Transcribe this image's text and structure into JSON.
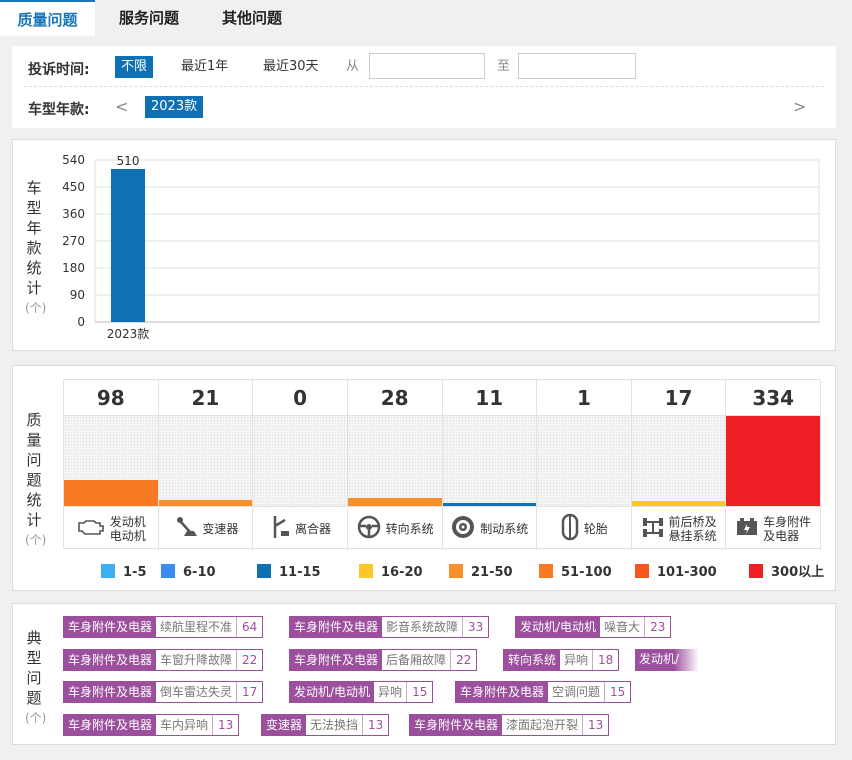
{
  "tabs": [
    "质量问题",
    "服务问题",
    "其他问题"
  ],
  "filter": {
    "time_label": "投诉时间:",
    "time_options": [
      "不限",
      "最近1年",
      "最近30天"
    ],
    "from_label": "从",
    "to_label": "至",
    "from_value": "",
    "to_value": "",
    "model_label": "车型年款:",
    "prev": "<",
    "next": ">",
    "model_selected": "2023款"
  },
  "year_chart": {
    "title_chars": [
      "车",
      "型",
      "年",
      "款",
      "统",
      "计"
    ],
    "unit": "(个)"
  },
  "chart_data": {
    "type": "bar",
    "categories": [
      "2023款"
    ],
    "values": [
      510
    ],
    "title": "车型年款统计",
    "ylabel": "(个)",
    "yticks": [
      0,
      90,
      180,
      270,
      360,
      450,
      540
    ],
    "ylim": [
      0,
      540
    ],
    "grid": true
  },
  "quality": {
    "title_chars": [
      "质",
      "量",
      "问",
      "题",
      "统",
      "计"
    ],
    "unit": "(个)",
    "max": 334,
    "columns": [
      {
        "count": "98",
        "value": 98,
        "label": [
          "发动机",
          "电动机"
        ],
        "icon": "engine-icon",
        "color": "#f97a25"
      },
      {
        "count": "21",
        "value": 21,
        "label": [
          "变速器"
        ],
        "icon": "gearshift-icon",
        "color": "#f78f2a"
      },
      {
        "count": "0",
        "value": 0,
        "label": [
          "离合器"
        ],
        "icon": "clutch-pedal-icon",
        "color": "#f78f2a"
      },
      {
        "count": "28",
        "value": 28,
        "label": [
          "转向系统"
        ],
        "icon": "steering-wheel-icon",
        "color": "#f78f2a"
      },
      {
        "count": "11",
        "value": 11,
        "label": [
          "制动系统"
        ],
        "icon": "brake-disc-icon",
        "color": "#0f71b3"
      },
      {
        "count": "1",
        "value": 1,
        "label": [
          "轮胎"
        ],
        "icon": "tire-icon",
        "color": "#3eaff1"
      },
      {
        "count": "17",
        "value": 17,
        "label": [
          "前后桥及",
          "悬挂系统"
        ],
        "icon": "axle-icon",
        "color": "#fcc72a"
      },
      {
        "count": "334",
        "value": 334,
        "label": [
          "车身附件",
          "及电器"
        ],
        "icon": "battery-icon",
        "color": "#f01f25"
      }
    ]
  },
  "legend": [
    {
      "label": "1-5",
      "color": "#3eaff1"
    },
    {
      "label": "6-10",
      "color": "#3b8ef0"
    },
    {
      "label": "11-15",
      "color": "#0f71b3"
    },
    {
      "label": "16-20",
      "color": "#fcc72a"
    },
    {
      "label": "21-50",
      "color": "#f78f2a"
    },
    {
      "label": "51-100",
      "color": "#f97a25"
    },
    {
      "label": "101-300",
      "color": "#f4581d"
    },
    {
      "label": "300以上",
      "color": "#f01f25"
    }
  ],
  "typical": {
    "title_chars": [
      "典",
      "型",
      "问",
      "题"
    ],
    "unit": "(个)",
    "tags": [
      {
        "category": "车身附件及电器",
        "issue": "续航里程不准",
        "count": "64"
      },
      {
        "category": "车身附件及电器",
        "issue": "影音系统故障",
        "count": "33"
      },
      {
        "category": "发动机/电动机",
        "issue": "噪音大",
        "count": "23"
      },
      {
        "category": "车身附件及电器",
        "issue": "车窗升降故障",
        "count": "22"
      },
      {
        "category": "车身附件及电器",
        "issue": "后备厢故障",
        "count": "22"
      },
      {
        "category": "转向系统",
        "issue": "异响",
        "count": "18"
      },
      {
        "category": "发动机/",
        "issue": "",
        "count": ""
      },
      {
        "category": "车身附件及电器",
        "issue": "倒车雷达失灵",
        "count": "17"
      },
      {
        "category": "发动机/电动机",
        "issue": "异响",
        "count": "15"
      },
      {
        "category": "车身附件及电器",
        "issue": "空调问题",
        "count": "15"
      },
      {
        "category": "车身附件及电器",
        "issue": "车内异响",
        "count": "13"
      },
      {
        "category": "变速器",
        "issue": "无法换挡",
        "count": "13"
      },
      {
        "category": "车身附件及电器",
        "issue": "漆面起泡开裂",
        "count": "13"
      }
    ]
  }
}
